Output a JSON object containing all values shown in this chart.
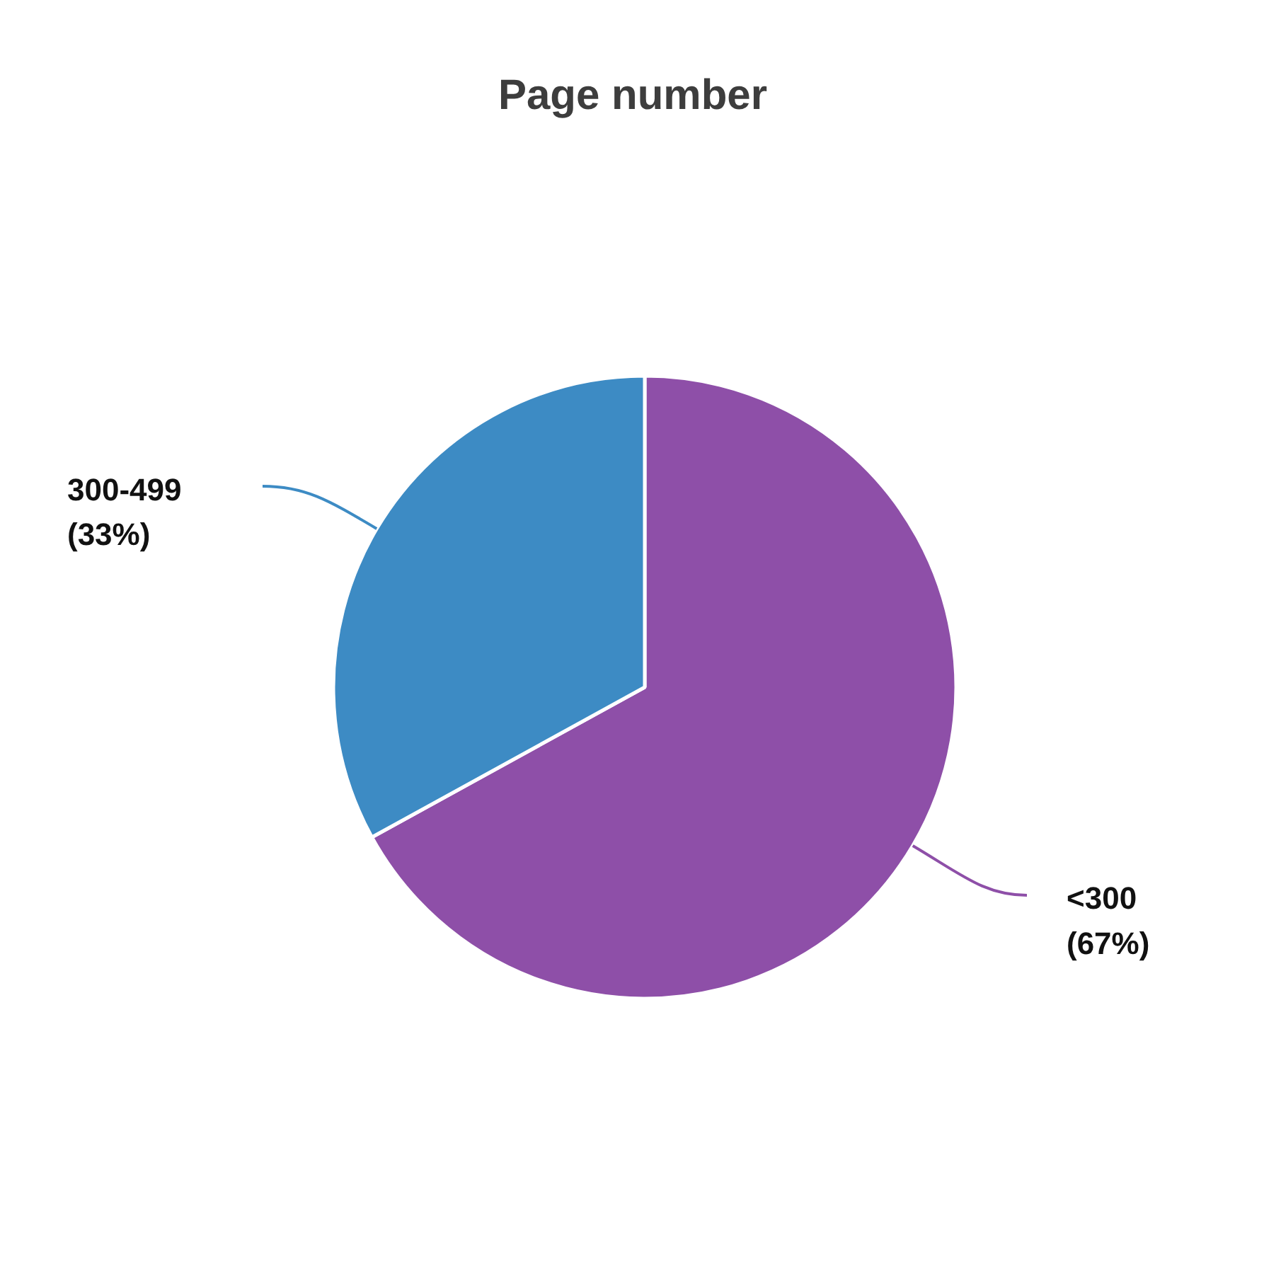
{
  "chart_data": {
    "type": "pie",
    "title": "Page number",
    "categories": [
      "<300",
      "300-499"
    ],
    "values": [
      67,
      33
    ],
    "colors": [
      "#8e4fa8",
      "#3d8bc4"
    ],
    "value_labels": [
      "(67%)",
      "(33%)"
    ]
  }
}
